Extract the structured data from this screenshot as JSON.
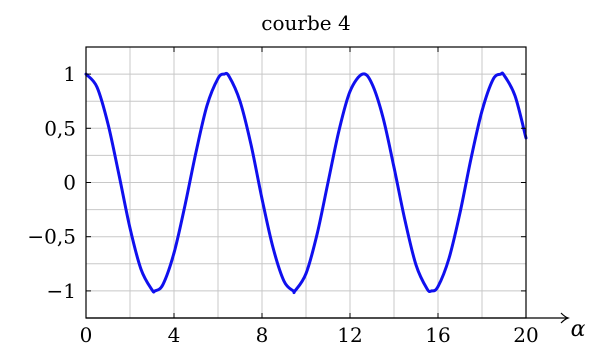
{
  "chart_data": {
    "type": "line",
    "title": "courbe 4",
    "xlabel": "α",
    "ylabel": "",
    "xlim": [
      0,
      20
    ],
    "ylim": [
      -1.25,
      1.25
    ],
    "grid": true,
    "x_major_ticks": [
      0,
      4,
      8,
      12,
      16,
      20
    ],
    "x_major_tick_labels": [
      "0",
      "4",
      "8",
      "12",
      "16",
      "20"
    ],
    "x_grid": [
      0,
      2,
      4,
      6,
      8,
      10,
      12,
      14,
      16,
      18,
      20
    ],
    "y_major_ticks": [
      1,
      0.5,
      0,
      -0.5,
      -1
    ],
    "y_major_tick_labels": [
      "1",
      "0,5",
      "0",
      "−0,5",
      "−1"
    ],
    "y_grid": [
      -1.25,
      -1,
      -0.75,
      -0.5,
      -0.25,
      0,
      0.25,
      0.5,
      0.75,
      1,
      1.25
    ],
    "series": [
      {
        "color": "#1010ee",
        "x": [
          0,
          0.5,
          1,
          1.5,
          2,
          2.5,
          3,
          3.14,
          3.5,
          4,
          4.5,
          5,
          5.5,
          6,
          6.28,
          6.5,
          7,
          7.5,
          8,
          8.5,
          9,
          9.42,
          9.5,
          10,
          10.5,
          11,
          11.5,
          12,
          12.57,
          13,
          13.5,
          14,
          14.5,
          15,
          15.5,
          15.71,
          16,
          16.5,
          17,
          17.5,
          18,
          18.5,
          18.85,
          19,
          19.5,
          20
        ],
        "y": [
          1,
          0.88,
          0.54,
          0.07,
          -0.42,
          -0.8,
          -0.99,
          -1,
          -0.94,
          -0.65,
          -0.21,
          0.28,
          0.71,
          0.96,
          1,
          0.98,
          0.75,
          0.35,
          -0.15,
          -0.6,
          -0.91,
          -1,
          -1,
          -0.84,
          -0.48,
          0.0,
          0.48,
          0.84,
          1,
          0.91,
          0.6,
          0.14,
          -0.35,
          -0.76,
          -0.98,
          -1,
          -0.96,
          -0.7,
          -0.28,
          0.22,
          0.66,
          0.95,
          1,
          0.99,
          0.8,
          0.41
        ]
      }
    ]
  }
}
